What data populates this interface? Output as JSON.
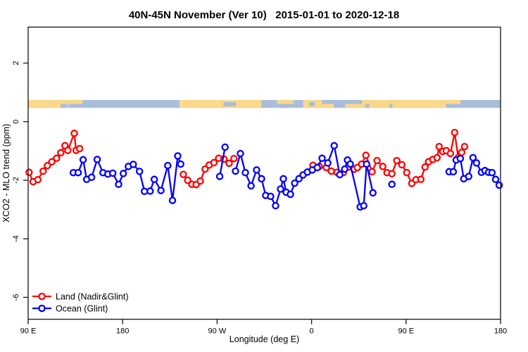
{
  "chart_data": {
    "type": "line",
    "title": "40N-45N November (Ver 10)   2015-01-01 to 2020-12-18",
    "xlabel": "Longitude (deg E)",
    "ylabel": "XCO2 - MLO trend (ppm)",
    "x_axis": {
      "range_deg": [
        0,
        450
      ],
      "tick_positions_deg": [
        0,
        90,
        180,
        270,
        360,
        450
      ],
      "tick_labels": [
        "90 E",
        "180",
        "90 W",
        "0",
        "90 E",
        "180"
      ]
    },
    "y_axis": {
      "range": [
        -6.75,
        3.25
      ],
      "ticks": [
        2,
        0,
        -2,
        -4,
        -6
      ]
    },
    "grid": false,
    "legend_position": "bottom-left",
    "legend": [
      {
        "label": "Land (Nadir&Glint)",
        "color": "#ff0000"
      },
      {
        "label": "Ocean (Glint)",
        "color": "#0000ff"
      }
    ],
    "series": [
      {
        "name": "Land (Nadir&Glint)",
        "color": "#ff0000",
        "segments": [
          [
            [
              0.9,
              -1.73
            ],
            [
              4.7,
              -2.05
            ],
            [
              9.2,
              -1.98
            ],
            [
              14.3,
              -1.69
            ],
            [
              18.3,
              -1.5
            ],
            [
              22.6,
              -1.37
            ],
            [
              27.1,
              -1.25
            ],
            [
              31.1,
              -1.06
            ],
            [
              35.1,
              -0.82
            ],
            [
              37.8,
              -0.98
            ],
            [
              43.9,
              -0.4
            ],
            [
              45.7,
              -0.98
            ],
            [
              49,
              -0.92
            ]
          ],
          [
            [
              147.8,
              -1.8
            ],
            [
              152,
              -2.0
            ],
            [
              156,
              -2.14
            ],
            [
              160,
              -2.15
            ],
            [
              164,
              -2.03
            ],
            [
              168.5,
              -1.62
            ],
            [
              172.5,
              -1.48
            ],
            [
              177,
              -1.4
            ],
            [
              181.5,
              -1.25
            ],
            [
              186.5,
              -1.28
            ],
            [
              191.5,
              -1.42
            ],
            [
              196,
              -1.26
            ]
          ],
          [
            [
              271.3,
              -1.49
            ],
            [
              277.4,
              -1.53
            ],
            [
              284.1,
              -1.57
            ],
            [
              288.8,
              -1.69
            ],
            [
              294.2,
              -1.73
            ],
            [
              300.2,
              -1.74
            ],
            [
              304.9,
              -1.55
            ],
            [
              310.3,
              -1.63
            ],
            [
              313.6,
              -1.57
            ],
            [
              317.7,
              -1.45
            ],
            [
              321.7,
              -1.15
            ],
            [
              327.7,
              -1.71
            ],
            [
              332.4,
              -1.33
            ],
            [
              337.8,
              -1.53
            ],
            [
              341.8,
              -1.74
            ],
            [
              346.5,
              -1.78
            ],
            [
              351.2,
              -1.33
            ],
            [
              356,
              -1.47
            ],
            [
              360.7,
              -1.74
            ],
            [
              365.4,
              -2.11
            ],
            [
              369.4,
              -1.98
            ],
            [
              374.1,
              -1.97
            ],
            [
              378.1,
              -1.55
            ],
            [
              381.4,
              -1.37
            ],
            [
              385.5,
              -1.29
            ],
            [
              389.5,
              -1.23
            ],
            [
              391.5,
              -0.85
            ],
            [
              394.9,
              -1.02
            ],
            [
              398.3,
              -0.99
            ],
            [
              402.3,
              -1.09
            ],
            [
              406.3,
              -0.37
            ],
            [
              409.7,
              -1.23
            ],
            [
              413,
              -1.05
            ],
            [
              415.7,
              -0.85
            ]
          ]
        ]
      },
      {
        "name": "Ocean (Glint)",
        "color": "#0000ff",
        "segments": [
          [
            [
              43,
              -1.74
            ],
            [
              47.7,
              -1.74
            ],
            [
              52.4,
              -1.3
            ],
            [
              55.7,
              -1.97
            ],
            [
              60.4,
              -1.9
            ],
            [
              65.8,
              -1.29
            ],
            [
              71.2,
              -1.74
            ],
            [
              75.9,
              -1.79
            ],
            [
              80.6,
              -1.76
            ],
            [
              86.2,
              -2.14
            ],
            [
              90.7,
              -1.77
            ],
            [
              95.4,
              -1.53
            ],
            [
              100.1,
              -1.46
            ],
            [
              106.1,
              -1.7
            ],
            [
              110.8,
              -2.38
            ],
            [
              116.2,
              -2.37
            ],
            [
              120.2,
              -1.97
            ],
            [
              126.5,
              -2.35
            ],
            [
              133,
              -1.5
            ],
            [
              137.5,
              -2.69
            ],
            [
              142.5,
              -1.17
            ],
            [
              145.3,
              -1.45
            ]
          ],
          [
            [
              182.5,
              -1.87
            ],
            [
              187.6,
              -0.87
            ]
          ],
          [
            [
              197.5,
              -1.69
            ],
            [
              202.2,
              -1.09
            ],
            [
              206.9,
              -1.74
            ],
            [
              212.3,
              -2.19
            ],
            [
              217.6,
              -1.65
            ],
            [
              222.3,
              -1.95
            ],
            [
              226.3,
              -2.52
            ],
            [
              231,
              -2.55
            ],
            [
              235.7,
              -2.87
            ],
            [
              240.4,
              -2.3
            ],
            [
              243.1,
              -1.95
            ],
            [
              245.8,
              -2.41
            ],
            [
              249.8,
              -2.48
            ],
            [
              253.9,
              -2.1
            ],
            [
              257.9,
              -1.95
            ],
            [
              261.9,
              -1.82
            ],
            [
              266,
              -1.72
            ],
            [
              270.7,
              -1.65
            ],
            [
              275.4,
              -1.57
            ],
            [
              280,
              -1.25
            ],
            [
              285.4,
              -1.41
            ],
            [
              291.5,
              -0.82
            ],
            [
              296.8,
              -1.81
            ],
            [
              301.5,
              -1.62
            ],
            [
              304.2,
              -1.31
            ],
            [
              306.9,
              -1.45
            ],
            [
              316.3,
              -2.91
            ],
            [
              319.7,
              -2.87
            ],
            [
              322.4,
              -1.45
            ],
            [
              328.4,
              -2.43
            ]
          ],
          [
            [
              401,
              -1.71
            ],
            [
              405,
              -1.71
            ],
            [
              407.7,
              -1.31
            ],
            [
              411.7,
              -1.26
            ],
            [
              415,
              -1.95
            ],
            [
              419.7,
              -1.87
            ],
            [
              423.8,
              -1.23
            ],
            [
              427.1,
              -1.41
            ],
            [
              431.8,
              -1.73
            ],
            [
              435.2,
              -1.67
            ],
            [
              438.6,
              -1.73
            ],
            [
              441.9,
              -1.74
            ],
            [
              445.3,
              -1.97
            ],
            [
              448.7,
              -2.17
            ]
          ]
        ],
        "isolated_points": [
          [
            346.5,
            -2.14
          ]
        ]
      }
    ],
    "map_band": {
      "description": "land/ocean strip for 40N-45N drawn across plot",
      "top_val": 0.74,
      "bottom_val": 0.47,
      "land_color": "#fbd88a",
      "ocean_color": "#a9bedb",
      "land_segments": [
        [
          0,
          38,
          "full"
        ],
        [
          38,
          52,
          "top"
        ],
        [
          144,
          222,
          "full"
        ],
        [
          237,
          253,
          "top"
        ],
        [
          262,
          280,
          "full"
        ],
        [
          280,
          291,
          "bottom"
        ],
        [
          302,
          318,
          "bottom"
        ],
        [
          318,
          398,
          "full"
        ],
        [
          398,
          412,
          "top"
        ]
      ],
      "ocean_patches": [
        [
          31,
          37,
          "bottom"
        ],
        [
          186,
          198,
          "mid"
        ],
        [
          240,
          247,
          "bottom"
        ],
        [
          268,
          273,
          "mid"
        ],
        [
          321,
          325,
          "bottom"
        ],
        [
          344,
          347,
          "bottom"
        ],
        [
          403,
          410,
          "bottom"
        ]
      ]
    }
  }
}
